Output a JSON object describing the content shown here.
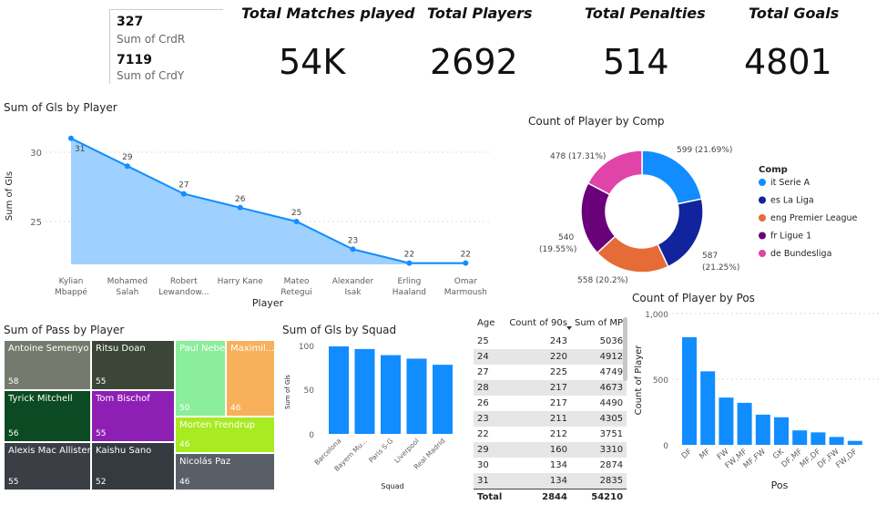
{
  "cards": {
    "red": {
      "value": "327",
      "label": "Sum of CrdR"
    },
    "yellow": {
      "value": "7119",
      "label": "Sum of CrdY"
    }
  },
  "kpis": [
    {
      "title": "Total Matches played",
      "value": "54K"
    },
    {
      "title": "Total Players",
      "value": "2692"
    },
    {
      "title": "Total Penalties",
      "value": "514"
    },
    {
      "title": "Total Goals",
      "value": "4801"
    }
  ],
  "line_chart": {
    "title": "Sum of Gls by Player",
    "xlabel": "Player",
    "ylabel": "Sum of Gls",
    "ytick_labels": [
      "30",
      "25"
    ],
    "players": [
      [
        "Kylian",
        "Mbappé"
      ],
      [
        "Mohamed",
        "Salah"
      ],
      [
        "Robert",
        "Lewandow..."
      ],
      [
        "Harry Kane",
        ""
      ],
      [
        "Mateo",
        "Retegui"
      ],
      [
        "Alexander",
        "Isak"
      ],
      [
        "Erling",
        "Haaland"
      ],
      [
        "Omar",
        "Marmoush"
      ]
    ]
  },
  "donut": {
    "title": "Count of Player by Comp",
    "legend_title": "Comp",
    "labels": [
      "599 (21.69%)",
      "587",
      "(21.25%)",
      "558 (20.2%)",
      "540",
      "(19.55%)",
      "478 (17.31%)"
    ]
  },
  "pos_chart": {
    "title": "Count of Player by Pos",
    "xlabel": "Pos",
    "ylabel": "Count of Player",
    "ytick_labels": [
      "1,000",
      "500",
      "0"
    ]
  },
  "treemap": {
    "title": "Sum of Pass by Player"
  },
  "squad_chart": {
    "title": "Sum of Gls by Squad",
    "xlabel": "Squad",
    "ylabel": "Sum of Gls",
    "ytick_labels": [
      "100",
      "50",
      "0"
    ]
  },
  "table": {
    "headers": [
      "Age",
      "Count of 90s",
      "Sum of MP"
    ],
    "rows": [
      [
        "25",
        "243",
        "5036"
      ],
      [
        "24",
        "220",
        "4912"
      ],
      [
        "27",
        "225",
        "4749"
      ],
      [
        "28",
        "217",
        "4673"
      ],
      [
        "26",
        "217",
        "4490"
      ],
      [
        "23",
        "211",
        "4305"
      ],
      [
        "22",
        "212",
        "3751"
      ],
      [
        "29",
        "160",
        "3310"
      ],
      [
        "30",
        "134",
        "2874"
      ],
      [
        "31",
        "134",
        "2835"
      ]
    ],
    "total": [
      "Total",
      "2844",
      "54210"
    ]
  },
  "chart_data": [
    {
      "type": "area",
      "title": "Sum of Gls by Player",
      "xlabel": "Player",
      "ylabel": "Sum of Gls",
      "categories": [
        "Kylian Mbappé",
        "Mohamed Salah",
        "Robert Lewandow...",
        "Harry Kane",
        "Mateo Retegui",
        "Alexander Isak",
        "Erling Haaland",
        "Omar Marmoush"
      ],
      "values": [
        31,
        29,
        27,
        26,
        25,
        23,
        22,
        22
      ],
      "ylim": [
        22,
        31.5
      ],
      "color": "#118DFF"
    },
    {
      "type": "pie",
      "title": "Count of Player by Comp",
      "legend": "right",
      "categories": [
        "it Serie A",
        "es La Liga",
        "eng Premier League",
        "fr Ligue 1",
        "de Bundesliga"
      ],
      "values": [
        599,
        587,
        558,
        540,
        478
      ],
      "colors": [
        "#118DFF",
        "#12239E",
        "#E66C37",
        "#6B007B",
        "#E044A7"
      ]
    },
    {
      "type": "bar",
      "title": "Count of Player by Pos",
      "xlabel": "Pos",
      "ylabel": "Count of Player",
      "categories": [
        "DF",
        "MF",
        "FW",
        "FW,MF",
        "MF,FW",
        "GK",
        "DF,MF",
        "MF,DF",
        "DF,FW",
        "FW,DF"
      ],
      "values": [
        820,
        560,
        360,
        320,
        230,
        210,
        110,
        95,
        60,
        30
      ],
      "ylim": [
        0,
        1000
      ],
      "color": "#118DFF"
    },
    {
      "type": "bar",
      "title": "Sum of Gls by Squad",
      "xlabel": "Squad",
      "ylabel": "Sum of Gls",
      "categories": [
        "Barcelona",
        "Bayern Mu...",
        "Paris S-G",
        "Liverpool",
        "Real Madrid"
      ],
      "values": [
        100,
        97,
        90,
        86,
        79
      ],
      "ylim": [
        0,
        110
      ],
      "color": "#118DFF"
    },
    {
      "type": "heatmap",
      "title": "Sum of Pass by Player",
      "categories": [
        "Antoine Semenyo",
        "Ritsu Doan",
        "Paul Nebel",
        "Maximil...",
        "Tyrick Mitchell",
        "Tom Bischof",
        "Morten Frendrup",
        "Alexis Mac Allister",
        "Kaishu Sano",
        "Nicolás Paz"
      ],
      "values": [
        58,
        55,
        50,
        46,
        56,
        55,
        46,
        55,
        52,
        46
      ],
      "colors": [
        "#757A6E",
        "#3B4638",
        "#8AEE9A",
        "#F8B05B",
        "#0B4A22",
        "#8E1FB5",
        "#A8EB20",
        "#3B3E45",
        "#333A40",
        "#5A5E66"
      ]
    }
  ]
}
